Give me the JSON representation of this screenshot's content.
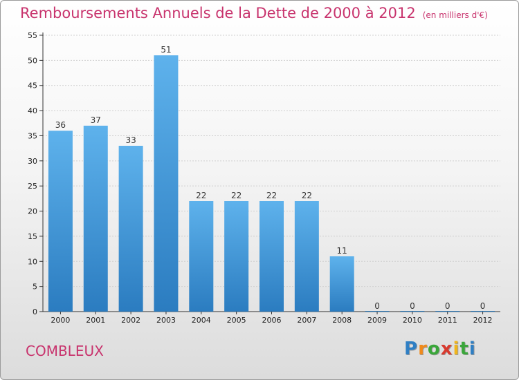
{
  "chart_data": {
    "type": "bar",
    "title": "Remboursements Annuels de la Dette de 2000 à 2012",
    "subtitle": "(en milliers d'€)",
    "categories": [
      "2000",
      "2001",
      "2002",
      "2003",
      "2004",
      "2005",
      "2006",
      "2007",
      "2008",
      "2009",
      "2010",
      "2011",
      "2012"
    ],
    "values": [
      36,
      37,
      33,
      51,
      22,
      22,
      22,
      22,
      11,
      0,
      0,
      0,
      0
    ],
    "ylim": [
      0,
      55
    ],
    "yticks": [
      0,
      5,
      10,
      15,
      20,
      25,
      30,
      35,
      40,
      45,
      50,
      55
    ],
    "grid": true,
    "bar_color_top": "#5eb2ec",
    "bar_color_bottom": "#2b7cc0"
  },
  "commune": "COMBLEUX",
  "logo": {
    "letters": [
      "P",
      "r",
      "o",
      "x",
      "i",
      "t",
      "i"
    ],
    "colors": [
      "#2f7fc4",
      "#f08a1c",
      "#3aa63a",
      "#d83a2f",
      "#f0b51c",
      "#3aa63a",
      "#2f7fc4"
    ]
  }
}
